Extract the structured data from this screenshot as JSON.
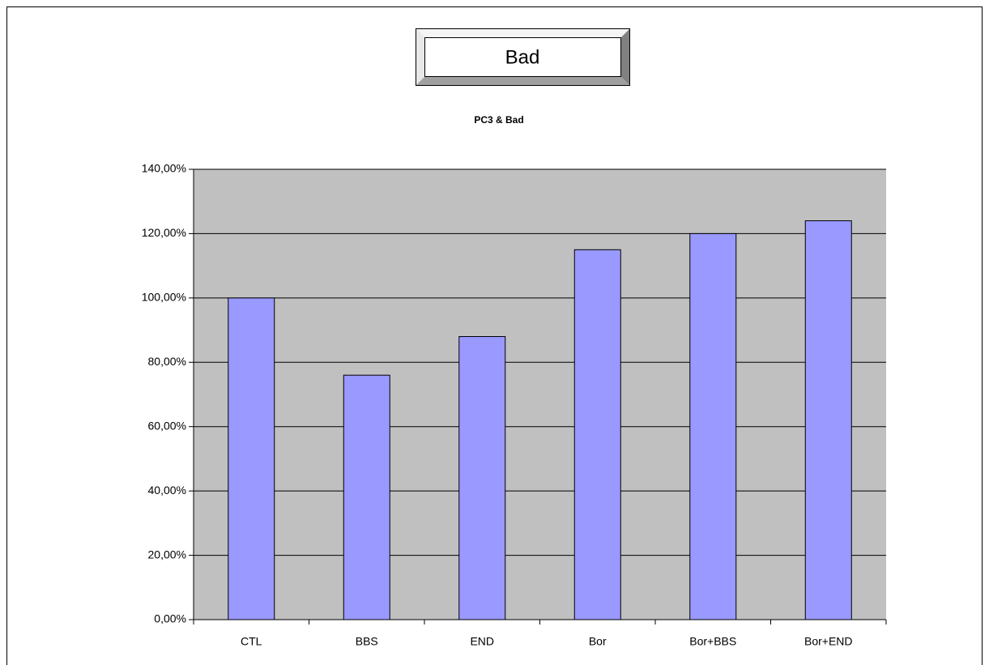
{
  "chart_data": {
    "type": "bar",
    "button": "Bad",
    "title": "PC3 & Bad",
    "categories": [
      "CTL",
      "BBS",
      "END",
      "Bor",
      "Bor+BBS",
      "Bor+END"
    ],
    "values": [
      100,
      76,
      88,
      115,
      120,
      124
    ],
    "color": "#9999ff",
    "ylim": [
      0,
      140
    ],
    "yticks": [
      {
        "value": 0,
        "label": "0,00%"
      },
      {
        "value": 20,
        "label": "20,00%"
      },
      {
        "value": 40,
        "label": "40,00%"
      },
      {
        "value": 60,
        "label": "60,00%"
      },
      {
        "value": 80,
        "label": "80,00%"
      },
      {
        "value": 100,
        "label": "100,00%"
      },
      {
        "value": 120,
        "label": "120,00%"
      },
      {
        "value": 140,
        "label": "140,00%"
      }
    ],
    "grid": true
  }
}
